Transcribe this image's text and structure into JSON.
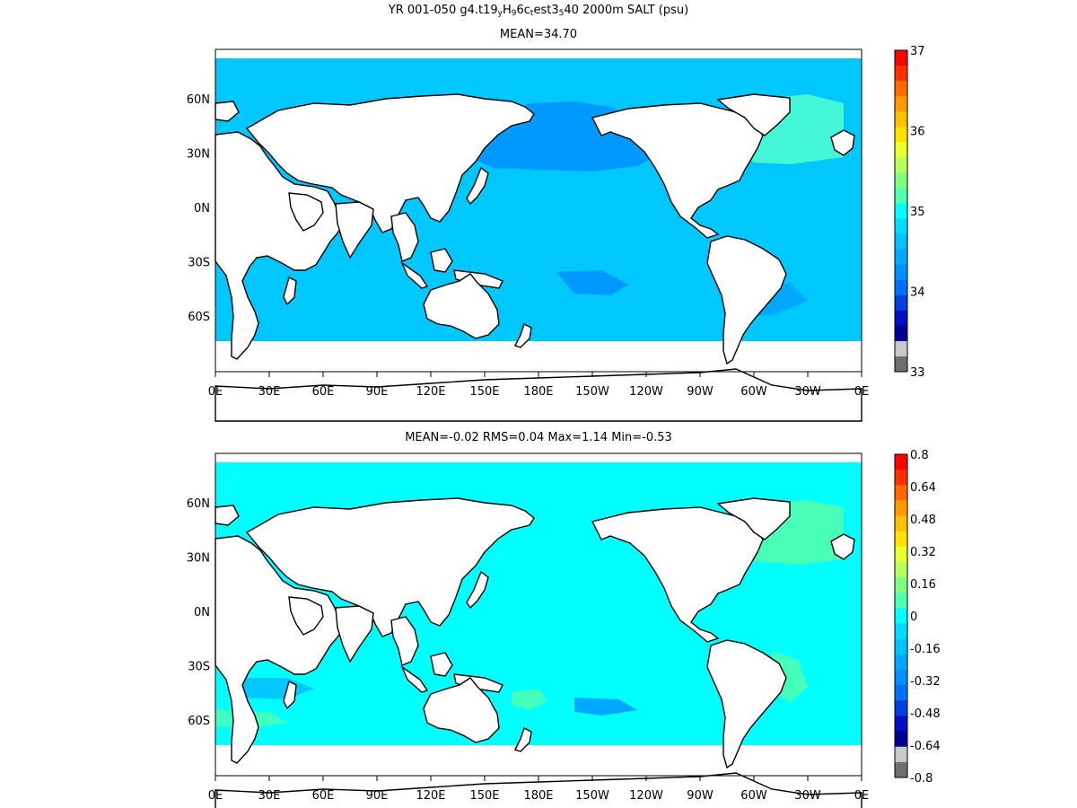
{
  "panels": [
    {
      "title_parts": [
        "YR 001-050 g4.t19",
        "y",
        "H",
        "9",
        "6c",
        "t",
        "est3",
        "5",
        "40 2000m SALT (psu)"
      ],
      "subtitle": "MEAN=34.70",
      "colorbar": {
        "labels": [
          "37",
          "36",
          "35",
          "34",
          "33"
        ],
        "colors": [
          "#ff0000",
          "#ff3000",
          "#ff6a00",
          "#ff9a00",
          "#ffc000",
          "#ffe000",
          "#e8ff30",
          "#b8ff60",
          "#80ff80",
          "#50ffb0",
          "#00ffff",
          "#00dcff",
          "#00c2ff",
          "#00a8ff",
          "#0090ff",
          "#0070ff",
          "#0040e0",
          "#0010c0",
          "#000090",
          "#c8c8c8",
          "#6e6e6e"
        ]
      }
    },
    {
      "title_parts": [
        "YR 001-050 g4.t19",
        "y",
        "H",
        "9",
        "6c",
        "t",
        "est3",
        "5",
        "40 2000m SALT-climatology (psu)"
      ],
      "subtitle": "MEAN=-0.02   RMS=0.04   Max=1.14   Min=-0.53",
      "colorbar": {
        "labels": [
          "0.8",
          "0.64",
          "0.48",
          "0.32",
          "0.16",
          "0",
          "-0.16",
          "-0.32",
          "-0.48",
          "-0.64",
          "-0.8"
        ],
        "colors": [
          "#ff0000",
          "#ff3000",
          "#ff6a00",
          "#ff9a00",
          "#ffc000",
          "#ffe000",
          "#e8ff30",
          "#b8ff60",
          "#80ff80",
          "#50ffb0",
          "#00ffff",
          "#00dcff",
          "#00c2ff",
          "#00a8ff",
          "#0090ff",
          "#0070ff",
          "#0040e0",
          "#0010c0",
          "#000090",
          "#c8c8c8",
          "#6e6e6e"
        ]
      }
    }
  ],
  "lon_labels": [
    "0E",
    "30E",
    "60E",
    "90E",
    "120E",
    "150E",
    "180E",
    "150W",
    "120W",
    "90W",
    "60W",
    "30W",
    "0E"
  ],
  "lat_labels": [
    "60N",
    "30N",
    "0N",
    "30S",
    "60S"
  ],
  "colors": {
    "ocean_main": "#00c8ff",
    "ocean_pacific_north": "#0099ff",
    "ocean_anomaly": "#00ffff",
    "land": "#ffffff",
    "coast": "#000000"
  }
}
